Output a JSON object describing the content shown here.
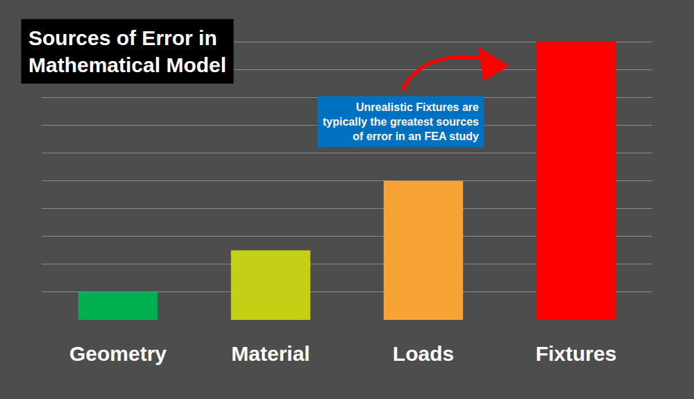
{
  "chart_data": {
    "type": "bar",
    "title": "Sources of Error in\nMathematical Model",
    "categories": [
      "Geometry",
      "Material",
      "Loads",
      "Fixtures"
    ],
    "values": [
      1,
      2.5,
      5,
      10
    ],
    "colors": [
      "#00b050",
      "#c4d016",
      "#f7a234",
      "#ff0000"
    ],
    "ylim": [
      0,
      11
    ],
    "yticks": [
      0,
      1,
      2,
      3,
      4,
      5,
      6,
      7,
      8,
      9,
      10,
      11
    ],
    "grid": true,
    "tick_labels": "x",
    "annotations": [
      "Unrealistic Fixtures are\ntypically the greatest sources\nof error in an FEA study"
    ]
  }
}
